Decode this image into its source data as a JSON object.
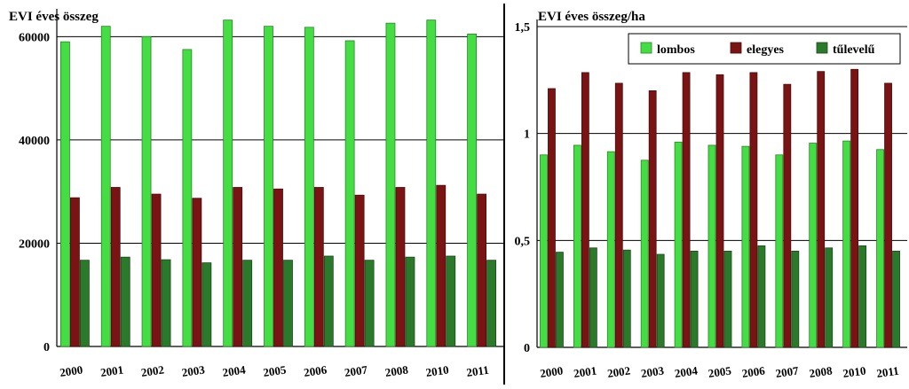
{
  "charts": [
    {
      "title": "EVI éves összeg",
      "chart_data": {
        "type": "bar",
        "categories": [
          "2000",
          "2001",
          "2002",
          "2003",
          "2004",
          "2005",
          "2006",
          "2007",
          "2008",
          "2010",
          "2011"
        ],
        "series": [
          {
            "name": "lombos",
            "color": "#44dd44",
            "values": [
              59000,
              62000,
              60000,
              57500,
              63200,
              62000,
              61800,
              59200,
              62600,
              63200,
              60500
            ]
          },
          {
            "name": "elegyes",
            "color": "#7a1414",
            "values": [
              28800,
              30800,
              29500,
              28700,
              30800,
              30500,
              30800,
              29300,
              30800,
              31200,
              29500
            ]
          },
          {
            "name": "tűlevelű",
            "color": "#2b7a2b",
            "values": [
              16700,
              17300,
              16800,
              16200,
              16700,
              16700,
              17500,
              16700,
              17300,
              17500,
              16700
            ]
          }
        ],
        "yticks": [
          "0",
          "20000",
          "40000",
          "60000"
        ],
        "ytick_values": [
          0,
          20000,
          40000,
          60000
        ],
        "ylim": [
          0,
          64000
        ],
        "grid": true
      }
    },
    {
      "title": "EVI éves összeg/ha",
      "chart_data": {
        "type": "bar",
        "categories": [
          "2000",
          "2001",
          "2002",
          "2003",
          "2004",
          "2005",
          "2006",
          "2007",
          "2008",
          "2010",
          "2011"
        ],
        "series": [
          {
            "name": "lombos",
            "color": "#44dd44",
            "values": [
              0.9,
              0.945,
              0.915,
              0.875,
              0.96,
              0.945,
              0.94,
              0.9,
              0.955,
              0.965,
              0.925
            ]
          },
          {
            "name": "elegyes",
            "color": "#7a1414",
            "values": [
              1.21,
              1.285,
              1.235,
              1.2,
              1.285,
              1.275,
              1.285,
              1.23,
              1.29,
              1.3,
              1.235
            ]
          },
          {
            "name": "tűlevelű",
            "color": "#2b7a2b",
            "values": [
              0.445,
              0.465,
              0.455,
              0.435,
              0.45,
              0.45,
              0.475,
              0.45,
              0.465,
              0.475,
              0.45
            ]
          }
        ],
        "yticks": [
          "0",
          "0,5",
          "1",
          "1,5"
        ],
        "ytick_values": [
          0,
          0.5,
          1,
          1.5
        ],
        "ylim": [
          0,
          1.5
        ],
        "grid": true,
        "legend": {
          "position": "top-right",
          "items": [
            "lombos",
            "elegyes",
            "tűlevelű"
          ]
        }
      }
    }
  ]
}
